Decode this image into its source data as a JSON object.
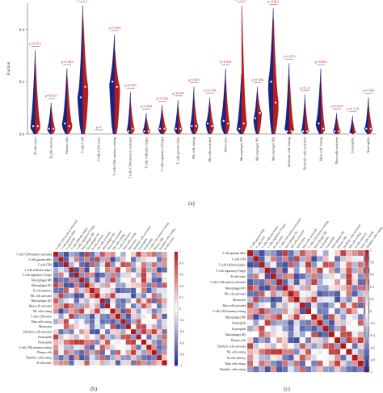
{
  "panel_labels": {
    "a": "(a)",
    "b": "(b)",
    "c": "(c)"
  },
  "colors": {
    "low": "#1a237e",
    "high": "#b71c1c",
    "pval": "#d32f2f",
    "axis": "#555555"
  },
  "chart_data": [
    {
      "type": "violin",
      "panel": "a",
      "ylabel": "Fraction",
      "ylim": [
        0,
        0.5
      ],
      "yticks": [
        "0.0",
        "0.2",
        "0.4"
      ],
      "categories": [
        "B cells naive",
        "B cells memory",
        "Plasma cells",
        "T cells CD8",
        "T cells CD4 naive",
        "T cells CD4 memory resting",
        "T cells CD4 memory activated",
        "T cells follicular helper",
        "T cells regulatory (Tregs)",
        "T cells gamma delta",
        "NK cells resting",
        "NK cells activated",
        "Monocytes",
        "Macrophages M0",
        "Macrophages M1",
        "Macrophages M2",
        "Dendritic cells resting",
        "Dendritic cells activated",
        "Mast cells resting",
        "Mast cells activated",
        "Eosinophils",
        "Neutrophils"
      ],
      "p_values": [
        "p=0.012",
        "p=0.037",
        "p=0.003",
        "p=0.001",
        "p=1",
        "p=0.003",
        "p=0.001",
        "p=0.001",
        "p=0.002",
        "p=0.003",
        "p=0.001",
        "p=0.108",
        "p=0.001",
        "p=0.001",
        "p=0.006",
        "p=0.001",
        "p=0.078",
        "p=0.22",
        "p=0.001",
        "p=0.619",
        "p=0.218",
        "p=0.482"
      ],
      "series": [
        {
          "values_max": [
            0.32,
            0.12,
            0.25,
            0.49,
            0.0,
            0.38,
            0.16,
            0.08,
            0.11,
            0.13,
            0.18,
            0.14,
            0.25,
            0.23,
            0.18,
            0.48,
            0.27,
            0.15,
            0.25,
            0.08,
            0.07,
            0.14
          ],
          "median": [
            0.03,
            0.02,
            0.04,
            0.14,
            0.0,
            0.2,
            0.01,
            0.01,
            0.02,
            0.02,
            0.03,
            0.04,
            0.05,
            0.02,
            0.06,
            0.2,
            0.01,
            0.01,
            0.04,
            0.01,
            0.0,
            0.02
          ]
        },
        {
          "values_max": [
            0.27,
            0.1,
            0.22,
            0.44,
            0.0,
            0.32,
            0.12,
            0.06,
            0.09,
            0.1,
            0.14,
            0.12,
            0.2,
            0.49,
            0.16,
            0.44,
            0.22,
            0.12,
            0.2,
            0.06,
            0.05,
            0.11
          ],
          "median": [
            0.03,
            0.02,
            0.03,
            0.18,
            0.0,
            0.18,
            0.02,
            0.01,
            0.02,
            0.02,
            0.03,
            0.03,
            0.04,
            0.04,
            0.08,
            0.12,
            0.01,
            0.01,
            0.02,
            0.01,
            0.0,
            0.02
          ]
        }
      ]
    },
    {
      "type": "heatmap",
      "panel": "b",
      "labels": [
        "T cells CD4 memory activated",
        "T cells gamma delta",
        "T cells CD8",
        "T cells follicular helper",
        "T cells regulatory (Tregs)",
        "Macrophages M0",
        "Macrophages M1",
        "B cells memory",
        "NK cells activated",
        "Macrophages M2",
        "Mast cells activated",
        "NK cells resting",
        "T cells CD4 naive",
        "Mast cells resting",
        "Monocytes",
        "Dendritic cells activated",
        "Eosinophils",
        "Neutrophils",
        "T cells CD4 memory resting",
        "Plasma cells",
        "Dendritic cells resting",
        "B cells naive"
      ],
      "colorbar_ticks": [
        "1",
        "0.8",
        "0.6",
        "0.4",
        "0.2",
        "0",
        "-0.2",
        "-0.4",
        "-0.6",
        "-0.8",
        "-1"
      ]
    },
    {
      "type": "heatmap",
      "panel": "c",
      "labels": [
        "T cells gamma delta",
        "T cells CD4",
        "T cells follicular helper",
        "T cells regulatory (Tregs)",
        "B cells naive",
        "T cells CD4 memory activated",
        "Macrophages M1",
        "NK cells activated",
        "Monocytes",
        "Mast cells activated",
        "T cells CD4 memory resting",
        "Macrophages M0",
        "Neutrophils",
        "Eosinophils",
        "Macrophages M2",
        "Plasma cells",
        "Dendritic cells activated",
        "NK cells resting",
        "B cells memory",
        "Mast cells resting",
        "Dendritic cells resting"
      ],
      "colorbar_ticks": [
        "1",
        "0.8",
        "0.6",
        "0.4",
        "0.2",
        "0",
        "-0.2",
        "-0.4",
        "-0.6",
        "-0.8",
        "-1"
      ]
    }
  ]
}
